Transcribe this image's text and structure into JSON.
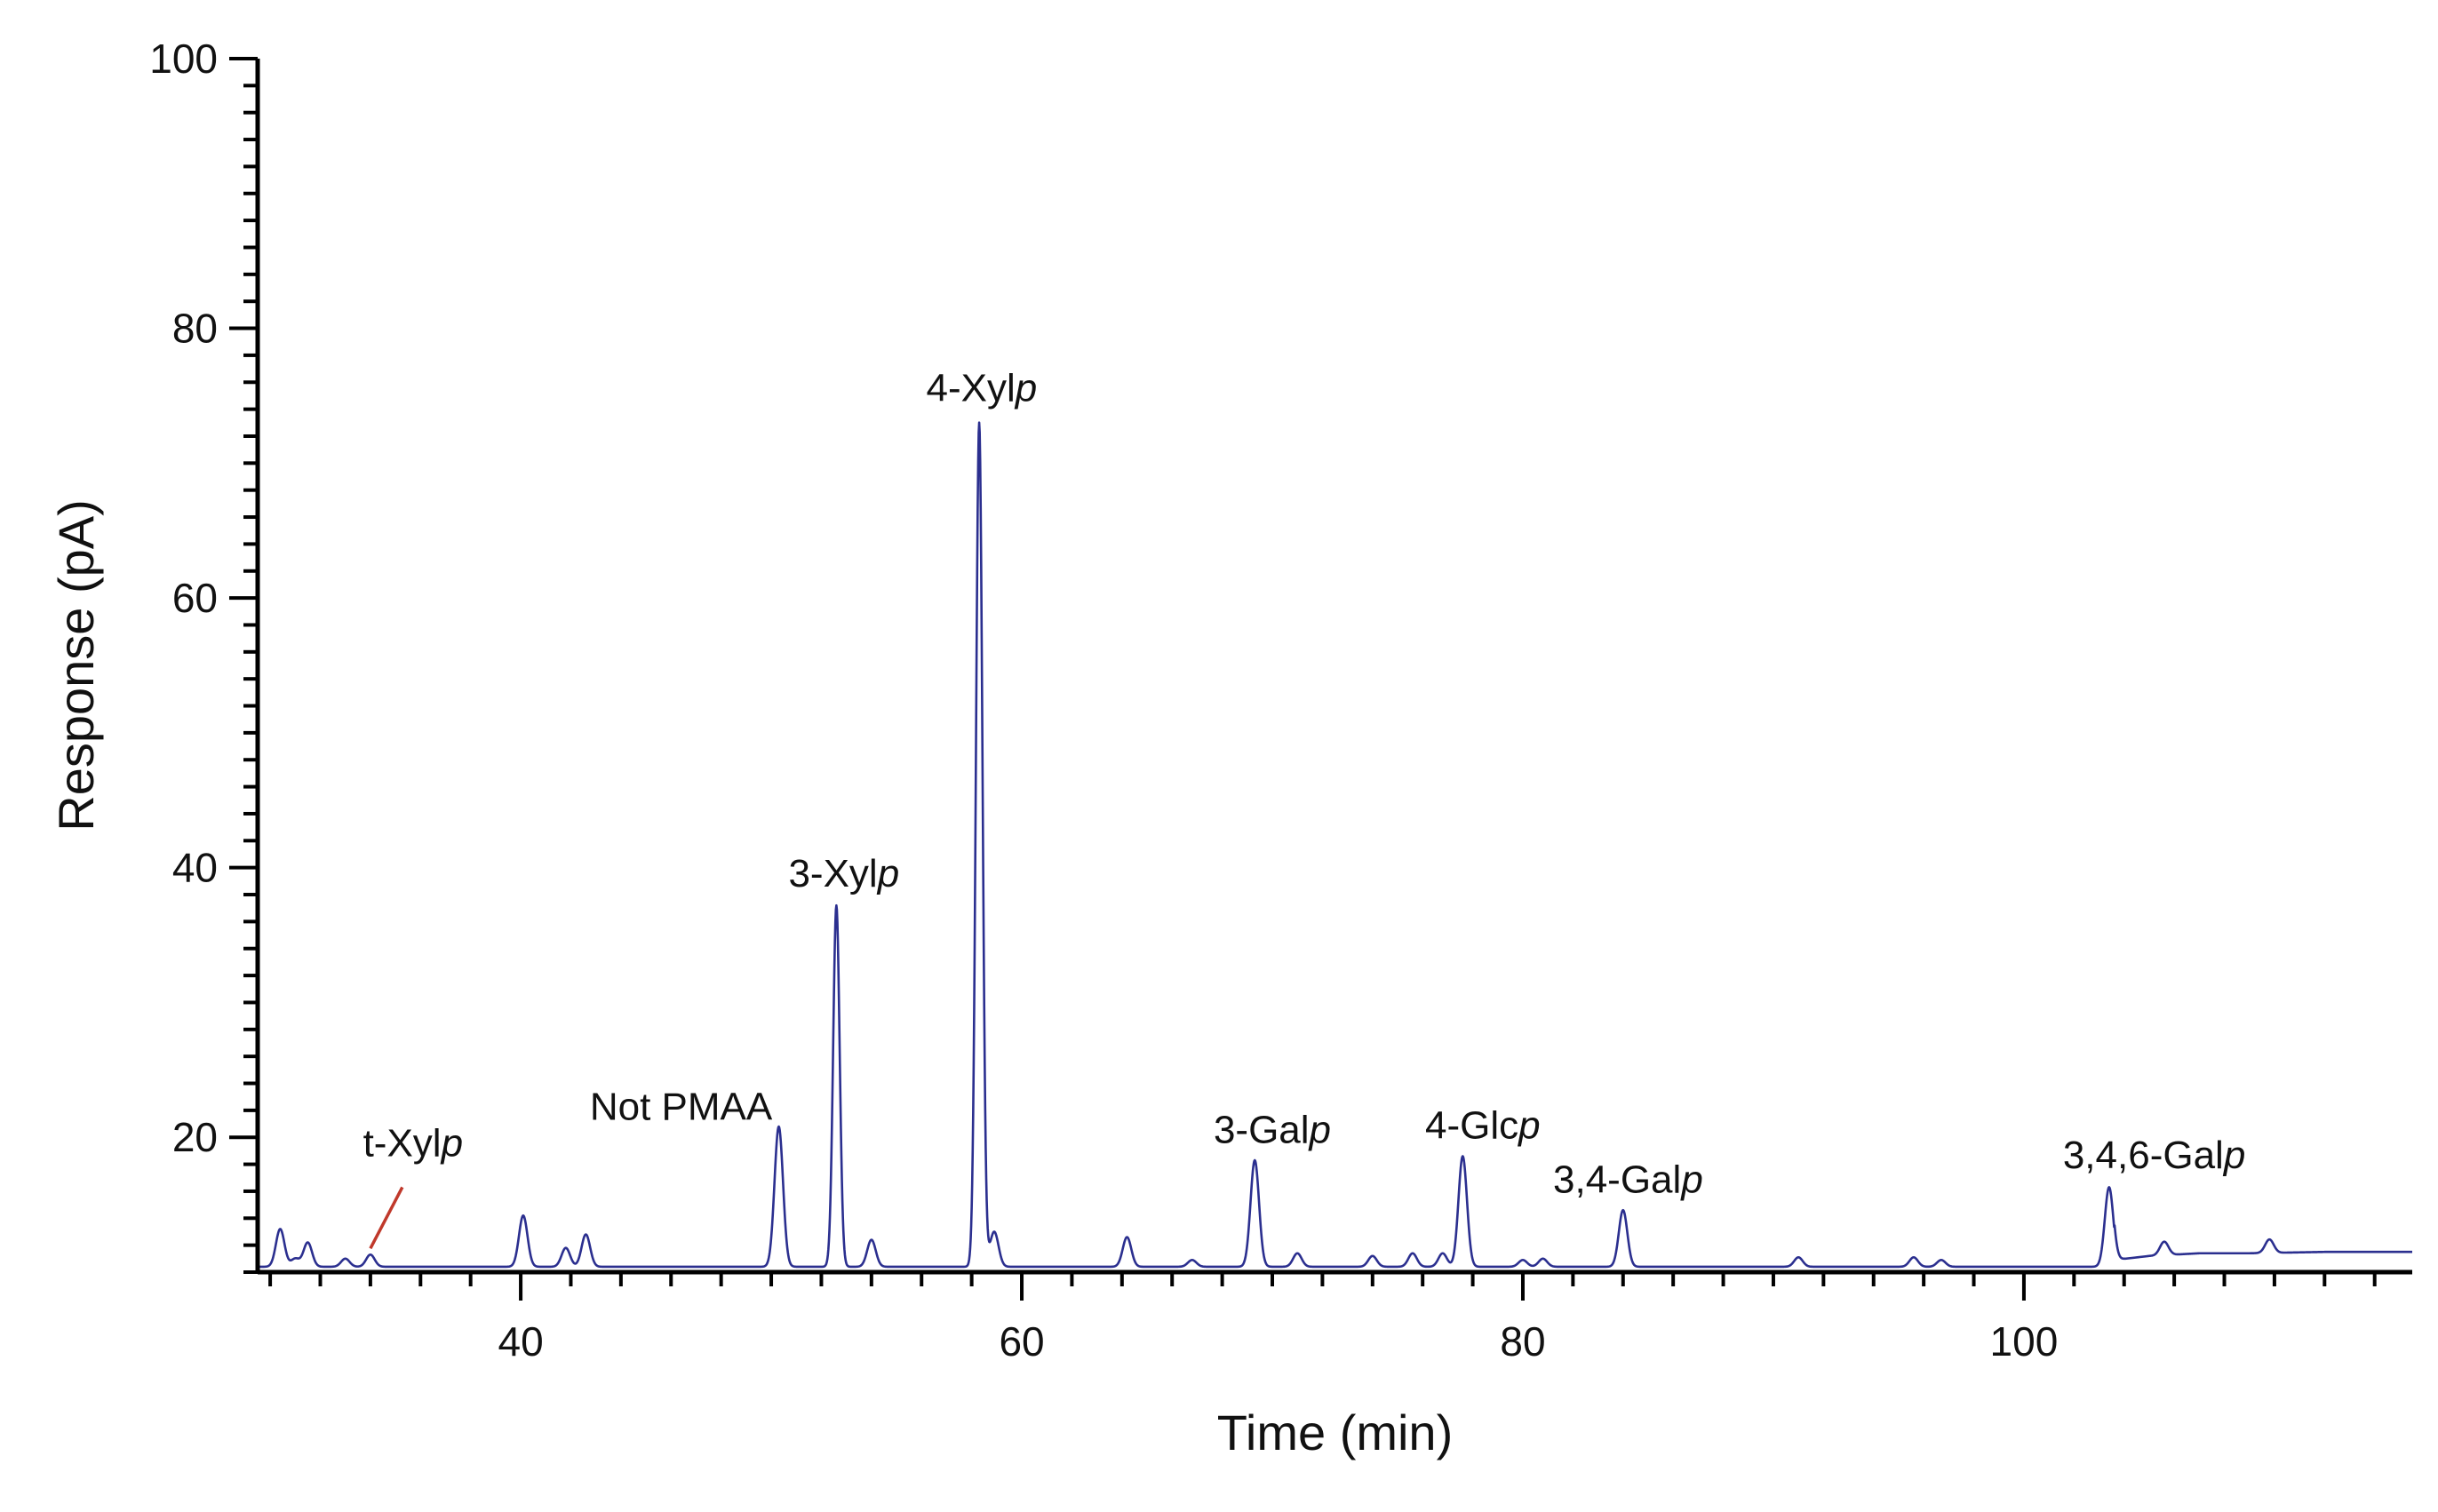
{
  "chart_data": {
    "type": "line",
    "title": "",
    "xlabel": "Time (min)",
    "ylabel": "Response (pA)",
    "xlim": [
      29.5,
      115.5
    ],
    "ylim": [
      10,
      100
    ],
    "x_ticks": [
      40,
      60,
      80,
      100
    ],
    "x_tick_labels": [
      "40",
      "60",
      "80",
      "100"
    ],
    "x_minor_step": 2,
    "y_ticks": [
      20,
      40,
      60,
      80,
      100
    ],
    "y_tick_labels": [
      "20",
      "40",
      "60",
      "80",
      "100"
    ],
    "y_minor_step": 2,
    "grid": false,
    "legend": "none",
    "line_color": "#2b2f8f",
    "pointer_color": "#c0392b",
    "baseline": 10.4,
    "peaks": [
      {
        "x": 30.4,
        "y": 13.2
      },
      {
        "x": 31.0,
        "y": 11.0
      },
      {
        "x": 31.5,
        "y": 12.2
      },
      {
        "x": 33.0,
        "y": 11.0
      },
      {
        "x": 34.0,
        "y": 11.3
      },
      {
        "x": 40.1,
        "y": 14.2
      },
      {
        "x": 41.8,
        "y": 11.8
      },
      {
        "x": 42.6,
        "y": 12.8
      },
      {
        "x": 50.3,
        "y": 20.8
      },
      {
        "x": 52.6,
        "y": 37.2
      },
      {
        "x": 54.0,
        "y": 12.4
      },
      {
        "x": 58.3,
        "y": 73.0
      },
      {
        "x": 58.9,
        "y": 13.0
      },
      {
        "x": 64.2,
        "y": 12.6
      },
      {
        "x": 66.8,
        "y": 10.9
      },
      {
        "x": 69.3,
        "y": 18.3
      },
      {
        "x": 71.0,
        "y": 11.4
      },
      {
        "x": 74.0,
        "y": 11.2
      },
      {
        "x": 75.6,
        "y": 11.4
      },
      {
        "x": 76.8,
        "y": 11.4
      },
      {
        "x": 77.6,
        "y": 18.6
      },
      {
        "x": 80.0,
        "y": 10.9
      },
      {
        "x": 80.8,
        "y": 11.0
      },
      {
        "x": 84.0,
        "y": 14.6
      },
      {
        "x": 91.0,
        "y": 11.1
      },
      {
        "x": 95.6,
        "y": 11.1
      },
      {
        "x": 96.7,
        "y": 10.9
      },
      {
        "x": 103.4,
        "y": 16.3
      },
      {
        "x": 105.6,
        "y": 11.4
      },
      {
        "x": 109.8,
        "y": 11.4
      }
    ],
    "rising_baseline": [
      {
        "x": 103.6,
        "y": 10.9
      },
      {
        "x": 105.0,
        "y": 11.2
      },
      {
        "x": 107.0,
        "y": 11.4
      },
      {
        "x": 109.0,
        "y": 11.4
      },
      {
        "x": 112.0,
        "y": 11.5
      },
      {
        "x": 115.5,
        "y": 11.5
      }
    ],
    "annotations": [
      {
        "text": "t-Xyl",
        "italic": "p",
        "x": 35.7,
        "y": 18.6,
        "points_to": {
          "x": 34.0,
          "y": 11.1
        }
      },
      {
        "text": "Not PMAA",
        "italic": "",
        "x": 46.4,
        "y": 21.3
      },
      {
        "text": "3-Xyl",
        "italic": "p",
        "x": 52.9,
        "y": 38.6
      },
      {
        "text": "4-Xyl",
        "italic": "p",
        "x": 58.4,
        "y": 74.6
      },
      {
        "text": "3-Gal",
        "italic": "p",
        "x": 70.0,
        "y": 19.6
      },
      {
        "text": "4-Glc",
        "italic": "p",
        "x": 78.4,
        "y": 19.9
      },
      {
        "text": "3,4-Gal",
        "italic": "p",
        "x": 84.2,
        "y": 15.9
      },
      {
        "text": "3,4,6-Gal",
        "italic": "p",
        "x": 105.2,
        "y": 17.7
      }
    ]
  }
}
